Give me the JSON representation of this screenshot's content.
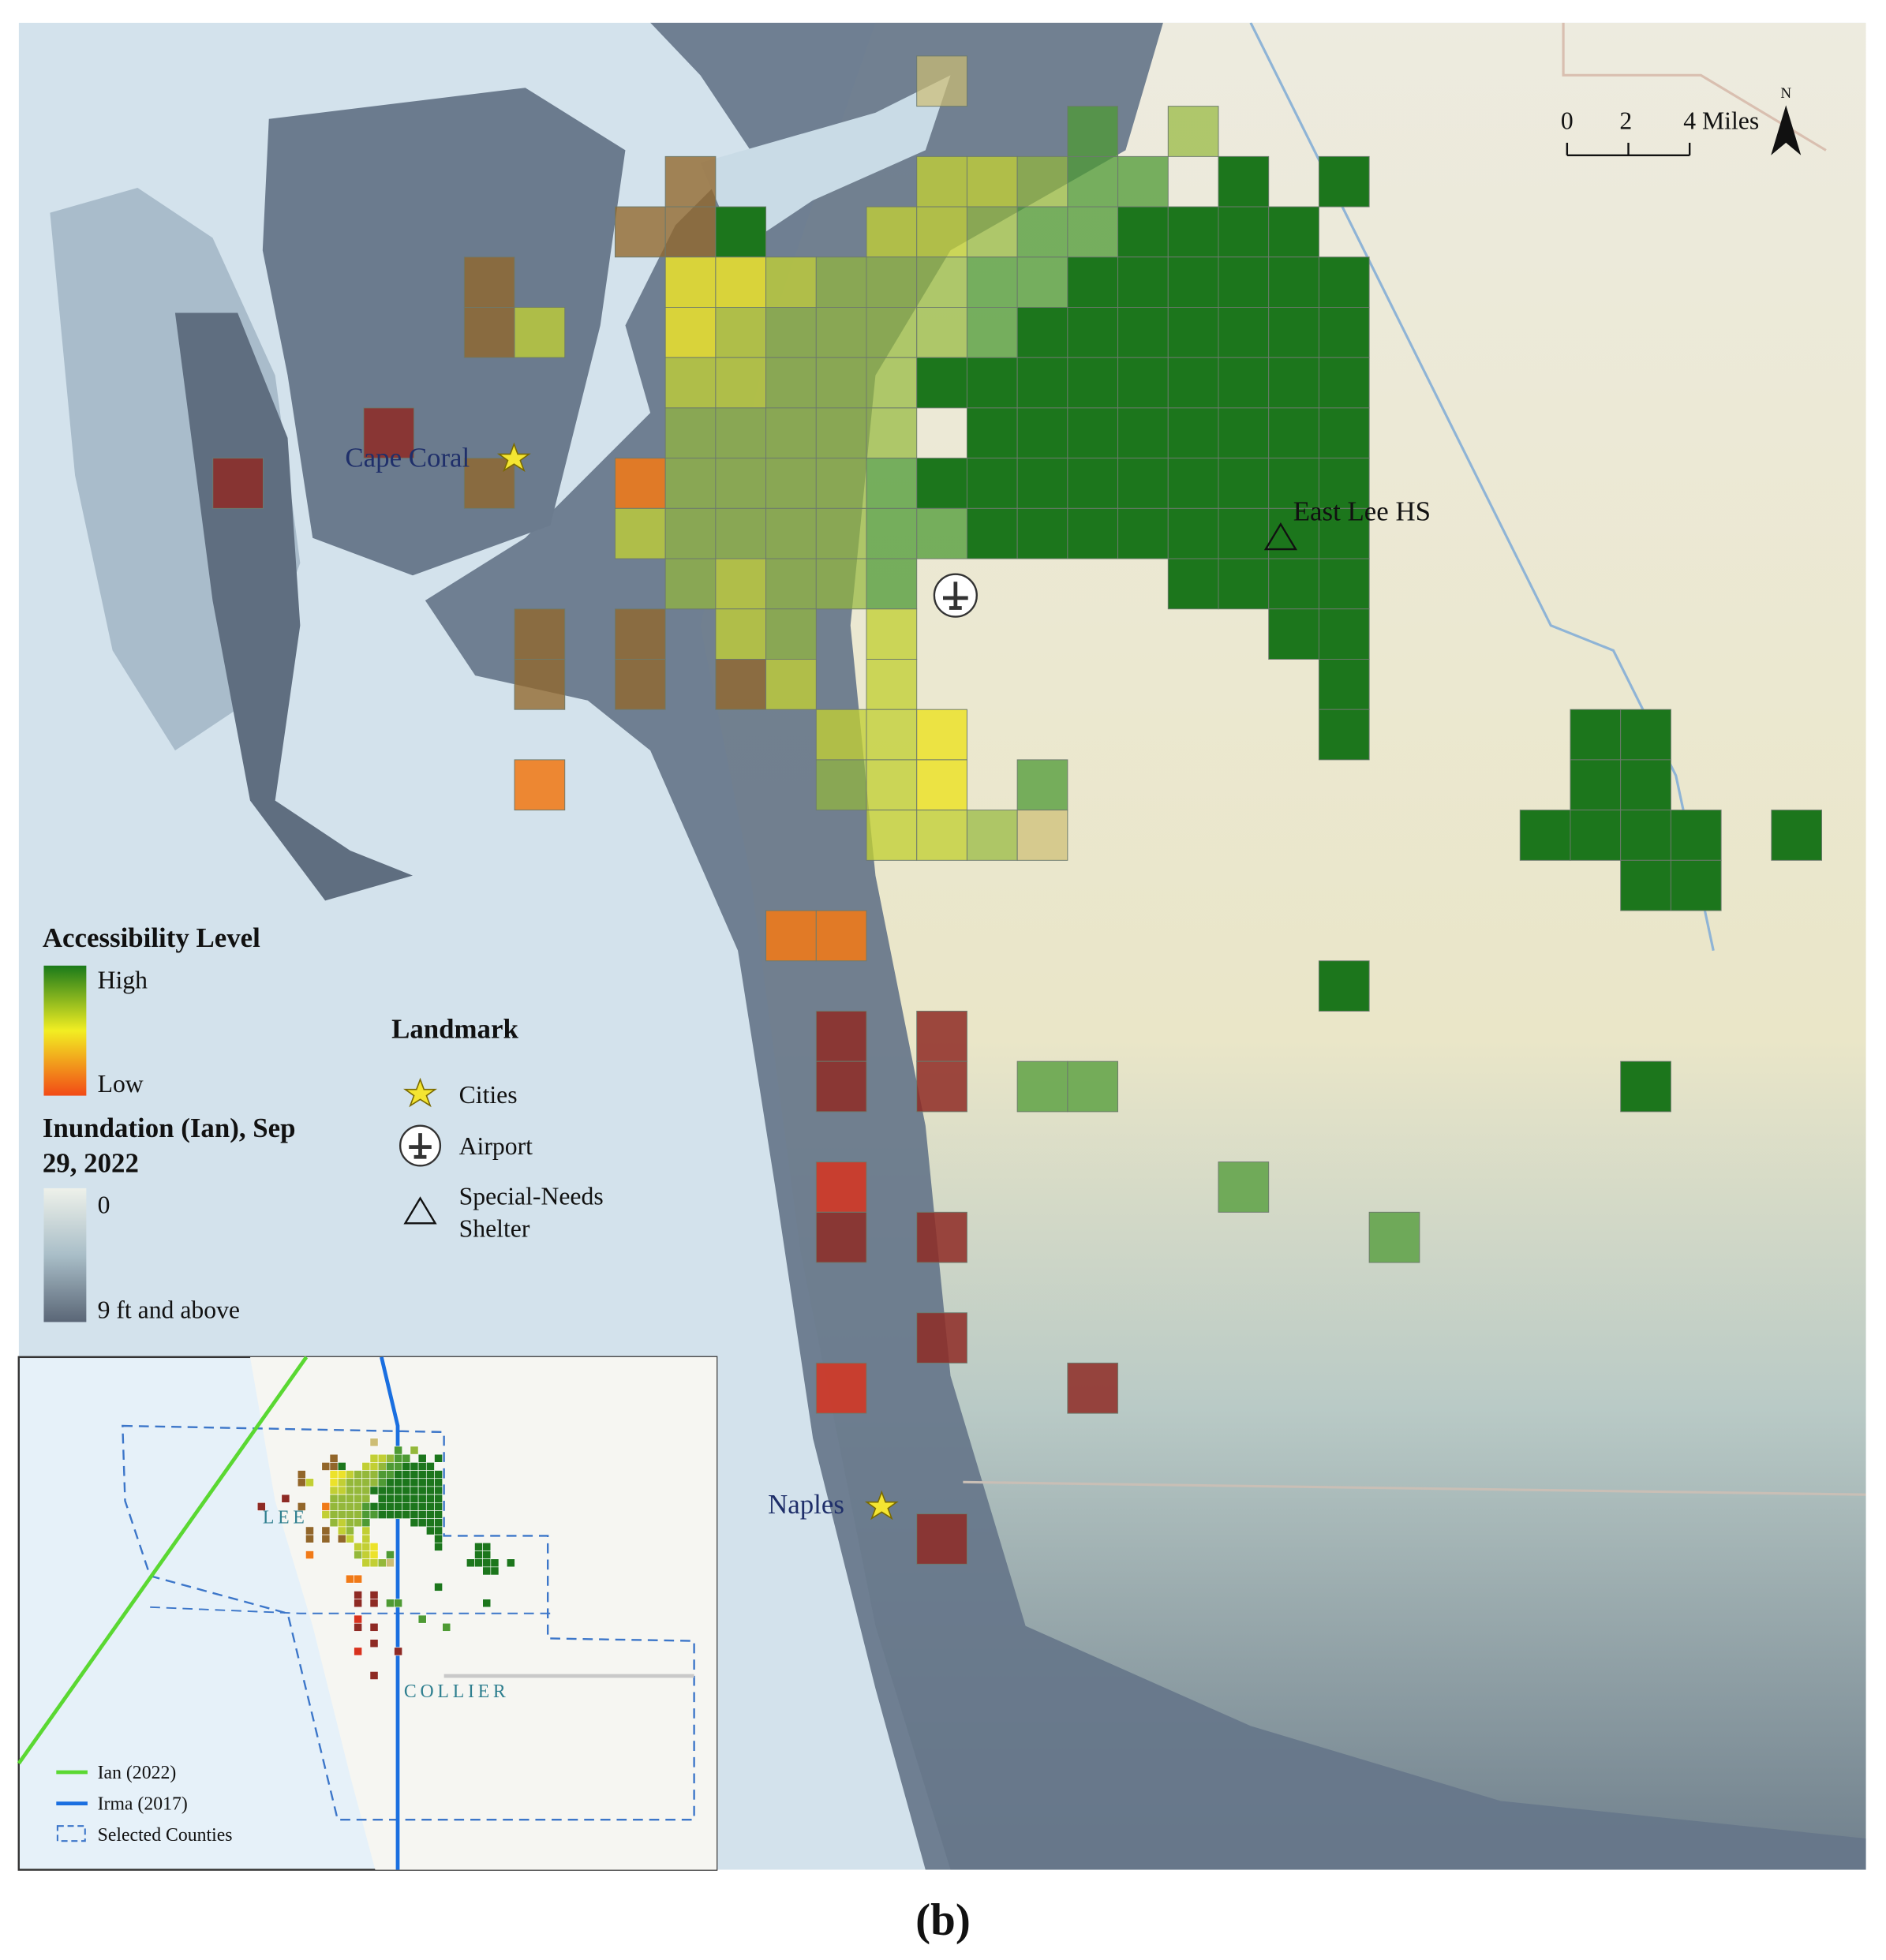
{
  "scale_bar": {
    "labels": [
      "0",
      "2",
      "4 Miles"
    ],
    "north": "N"
  },
  "places": {
    "cities": [
      "Cape Coral",
      "Naples"
    ],
    "shelter": "East Lee HS"
  },
  "legend": {
    "accessibility": {
      "title": "Accessibility Level",
      "high": "High",
      "low": "Low"
    },
    "inundation": {
      "title": [
        "Inundation (Ian), Sep",
        "29, 2022"
      ],
      "min": "0",
      "max": "9 ft and above"
    },
    "landmark": {
      "title": "Landmark",
      "items": [
        "Cities",
        "Airport"
      ],
      "shelter": [
        "Special-Needs",
        "Shelter"
      ]
    }
  },
  "inset": {
    "counties": [
      "LEE",
      "COLLIER"
    ],
    "legend": [
      "Ian (2022)",
      "Irma (2017)",
      "Selected Counties"
    ]
  },
  "caption": "(b)"
}
